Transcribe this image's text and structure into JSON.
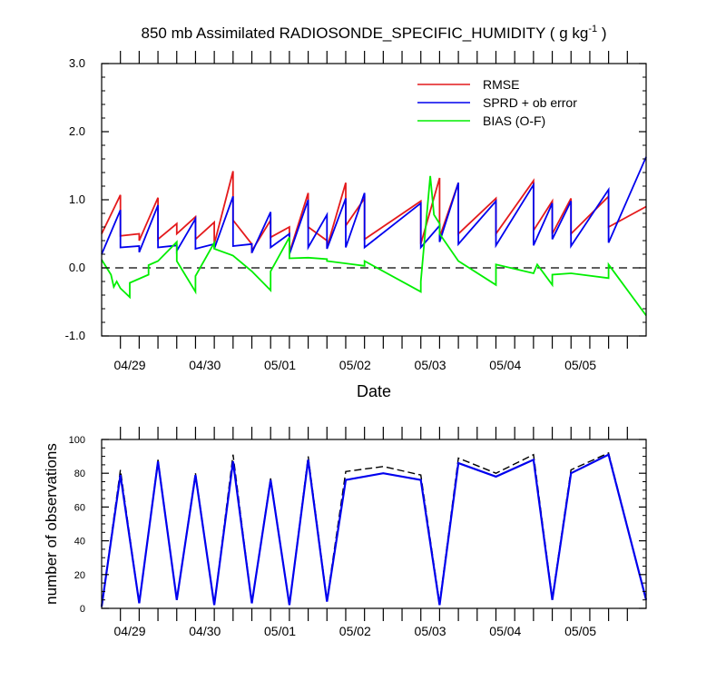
{
  "colors": {
    "rmse": "#e41a1c",
    "sprd": "#0000ee",
    "bias": "#00ee00",
    "axis": "#000000",
    "obs_used": "#0000ee",
    "obs_possible": "#000000"
  },
  "chart_data": [
    {
      "type": "line",
      "title": "850 mb Assimilated RADIOSONDE_SPECIFIC_HUMIDITY ( g kg",
      "title_sup": "-1",
      "title_end": " )",
      "xlabel": "Date",
      "ylabel": "",
      "ylim": [
        -1.0,
        3.0
      ],
      "xlim": [
        0,
        58
      ],
      "yticks": [
        -1.0,
        0.0,
        1.0,
        2.0,
        3.0
      ],
      "ytick_labels": [
        "-1.0",
        "0.0",
        "1.0",
        "2.0",
        "3.0"
      ],
      "x_unit": "6-hour assimilation steps",
      "xtick_positions": [
        3,
        11,
        19,
        27,
        35,
        43,
        51
      ],
      "xtick_labels": [
        "04/29",
        "04/30",
        "05/01",
        "05/02",
        "05/03",
        "05/04",
        "05/05"
      ],
      "reference_line": 0.0,
      "legend_position": "top-right",
      "series": [
        {
          "name": "RMSE",
          "x": [
            0,
            2,
            2,
            4,
            4,
            6,
            6,
            8,
            8,
            10,
            10,
            12,
            12,
            14,
            14,
            16,
            16,
            18,
            18,
            20,
            20,
            22,
            22,
            24,
            24,
            26,
            26,
            28,
            28,
            34,
            34,
            36,
            36,
            38,
            38,
            42,
            42,
            46,
            46,
            48,
            48,
            50,
            50,
            54,
            54,
            58
          ],
          "y": [
            0.5,
            1.07,
            0.47,
            0.5,
            0.4,
            1.03,
            0.42,
            0.65,
            0.5,
            0.75,
            0.42,
            0.67,
            0.35,
            1.42,
            0.7,
            0.35,
            0.25,
            0.7,
            0.45,
            0.6,
            0.22,
            1.1,
            0.6,
            0.4,
            0.3,
            1.25,
            0.62,
            1.02,
            0.42,
            0.98,
            0.35,
            1.32,
            0.45,
            1.25,
            0.5,
            1.02,
            0.5,
            1.28,
            0.55,
            0.98,
            0.5,
            1.02,
            0.5,
            1.05,
            0.6,
            0.9
          ]
        },
        {
          "name": "SPRD + ob error",
          "x": [
            0,
            2,
            2,
            4,
            4,
            6,
            6,
            8,
            8,
            10,
            10,
            12,
            12,
            14,
            14,
            16,
            16,
            18,
            18,
            20,
            20,
            22,
            22,
            24,
            24,
            26,
            26,
            28,
            28,
            34,
            34,
            36,
            36,
            38,
            38,
            42,
            42,
            46,
            46,
            48,
            48,
            50,
            50,
            54,
            54,
            58
          ],
          "y": [
            0.2,
            0.85,
            0.3,
            0.32,
            0.23,
            0.92,
            0.3,
            0.33,
            0.25,
            0.72,
            0.28,
            0.35,
            0.28,
            1.05,
            0.32,
            0.35,
            0.22,
            0.82,
            0.3,
            0.5,
            0.2,
            1.0,
            0.3,
            0.78,
            0.28,
            1.02,
            0.3,
            1.1,
            0.3,
            0.95,
            0.3,
            0.62,
            0.38,
            1.25,
            0.35,
            0.98,
            0.33,
            1.22,
            0.33,
            0.95,
            0.42,
            0.98,
            0.32,
            1.15,
            0.37,
            1.63
          ]
        },
        {
          "name": "BIAS (O-F)",
          "x": [
            0,
            1,
            1.3,
            1.6,
            2,
            3,
            3,
            5,
            5,
            6,
            6,
            8,
            8,
            10,
            10,
            12,
            12,
            14,
            14,
            16,
            16,
            18,
            18,
            20,
            20,
            22,
            22,
            24,
            24,
            28,
            28,
            34,
            34,
            35,
            35.4,
            36,
            36,
            38,
            38,
            42,
            42,
            46,
            46,
            46.4,
            48,
            48,
            50,
            50,
            54,
            54,
            58
          ],
          "y": [
            0.12,
            -0.1,
            -0.28,
            -0.2,
            -0.3,
            -0.43,
            -0.22,
            -0.1,
            0.04,
            0.1,
            0.1,
            0.38,
            0.1,
            -0.35,
            -0.12,
            0.37,
            0.28,
            0.18,
            0.18,
            -0.05,
            -0.05,
            -0.33,
            -0.05,
            0.45,
            0.14,
            0.15,
            0.15,
            0.13,
            0.1,
            0.03,
            0.1,
            -0.35,
            -0.2,
            1.35,
            0.78,
            0.65,
            0.5,
            0.1,
            0.1,
            -0.25,
            0.05,
            -0.08,
            -0.08,
            0.05,
            -0.25,
            -0.1,
            -0.08,
            -0.08,
            -0.15,
            0.05,
            -0.7
          ]
        }
      ]
    },
    {
      "type": "line",
      "title": "",
      "xlabel": "",
      "ylabel": "number of observations",
      "ylim": [
        0,
        100
      ],
      "xlim": [
        0,
        58
      ],
      "yticks": [
        0,
        20,
        40,
        60,
        80,
        100
      ],
      "ytick_labels": [
        "0",
        "20",
        "40",
        "60",
        "80",
        "100"
      ],
      "x_unit": "6-hour assimilation steps",
      "xtick_positions": [
        3,
        11,
        19,
        27,
        35,
        43,
        51
      ],
      "xtick_labels": [
        "04/29",
        "04/30",
        "05/01",
        "05/02",
        "05/03",
        "05/04",
        "05/05"
      ],
      "series": [
        {
          "name": "",
          "style": "dashed",
          "x": [
            0,
            2,
            4,
            6,
            8,
            10,
            12,
            14,
            16,
            18,
            20,
            22,
            24,
            26,
            30,
            34,
            36,
            38,
            42,
            46,
            48,
            50,
            54,
            58
          ],
          "y": [
            1,
            82,
            3,
            88,
            5,
            80,
            2,
            91,
            3,
            77,
            2,
            90,
            5,
            81,
            84,
            79,
            3,
            89,
            80,
            91,
            6,
            82,
            92,
            5
          ]
        },
        {
          "name": "",
          "style": "solid",
          "x": [
            0,
            2,
            4,
            6,
            8,
            10,
            12,
            14,
            16,
            18,
            20,
            22,
            24,
            26,
            30,
            34,
            36,
            38,
            42,
            46,
            48,
            50,
            54,
            58
          ],
          "y": [
            1,
            79,
            3,
            87,
            5,
            79,
            2,
            87,
            3,
            76,
            2,
            88,
            4,
            76,
            80,
            76,
            2,
            86,
            78,
            88,
            5,
            80,
            91,
            5
          ]
        }
      ]
    }
  ]
}
